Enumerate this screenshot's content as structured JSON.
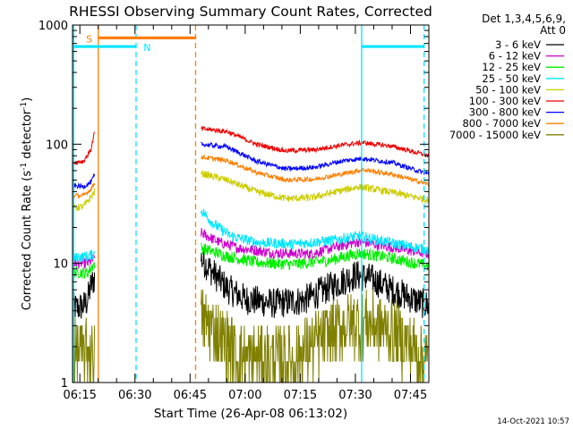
{
  "chart_data": {
    "type": "line",
    "title": "RHESSI Observing Summary Count Rates, Corrected",
    "xlabel": "Start Time (26-Apr-08 06:13:02)",
    "ylabel_main": "Corrected Count Rate (s",
    "ylabel_sup1": "-1",
    "ylabel_mid": " detector",
    "ylabel_sup2": "-1",
    "ylabel_end": ")",
    "yscale": "log",
    "ylim": [
      1,
      1000
    ],
    "xlim_minutes": [
      0,
      97
    ],
    "x_tick_labels": [
      "06:15",
      "06:30",
      "06:45",
      "07:00",
      "07:15",
      "07:30",
      "07:45"
    ],
    "x_tick_minutes": [
      2,
      17,
      32,
      47,
      62,
      77,
      92
    ],
    "y_tick_labels": [
      "1",
      "10",
      "100",
      "1000"
    ],
    "y_tick_values": [
      1,
      10,
      100,
      1000
    ],
    "legend_header": [
      "Det 1,3,4,5,6,9,",
      "Att 0"
    ],
    "legend_placement": "right",
    "timestamp": "14-Oct-2021 10:57",
    "segments": [
      [
        0,
        6
      ],
      [
        35,
        97
      ]
    ],
    "series": [
      {
        "name": "3 - 6 keV",
        "color": "#000000",
        "profile": [
          [
            0,
            4.5
          ],
          [
            1,
            4.2
          ],
          [
            3,
            4.4
          ],
          [
            4,
            4.8
          ],
          [
            5,
            6.5
          ],
          [
            6,
            7.5
          ],
          [
            35,
            11
          ],
          [
            38,
            8.5
          ],
          [
            42,
            6.2
          ],
          [
            47,
            5.0
          ],
          [
            55,
            4.6
          ],
          [
            63,
            4.9
          ],
          [
            70,
            6.3
          ],
          [
            77,
            8.0
          ],
          [
            81,
            7.5
          ],
          [
            87,
            6.0
          ],
          [
            94,
            4.8
          ],
          [
            97,
            4.4
          ]
        ],
        "noise": 0.13
      },
      {
        "name": "6 - 12 keV",
        "color": "#cc00cc",
        "profile": [
          [
            0,
            10
          ],
          [
            4,
            10
          ],
          [
            6,
            11
          ],
          [
            35,
            18
          ],
          [
            40,
            15
          ],
          [
            45,
            13.5
          ],
          [
            55,
            12.2
          ],
          [
            65,
            12.0
          ],
          [
            72,
            13.8
          ],
          [
            78,
            15.2
          ],
          [
            85,
            14
          ],
          [
            97,
            12
          ]
        ],
        "noise": 0.045
      },
      {
        "name": "12 - 25 keV",
        "color": "#00ee00",
        "profile": [
          [
            0,
            8.5
          ],
          [
            4,
            8.3
          ],
          [
            6,
            10
          ],
          [
            35,
            13.5
          ],
          [
            42,
            11.5
          ],
          [
            50,
            10.2
          ],
          [
            60,
            9.8
          ],
          [
            70,
            10.6
          ],
          [
            78,
            12.2
          ],
          [
            86,
            11.2
          ],
          [
            97,
            9.5
          ]
        ],
        "noise": 0.05
      },
      {
        "name": "25 - 50 keV",
        "color": "#00e5ff",
        "profile": [
          [
            0,
            11
          ],
          [
            4,
            11.5
          ],
          [
            6,
            12
          ],
          [
            35,
            28
          ],
          [
            38,
            22
          ],
          [
            43,
            17
          ],
          [
            50,
            15
          ],
          [
            60,
            14.5
          ],
          [
            70,
            15.5
          ],
          [
            78,
            17
          ],
          [
            86,
            15
          ],
          [
            97,
            13
          ]
        ],
        "noise": 0.045
      },
      {
        "name": "50 - 100 keV",
        "color": "#cccc00",
        "profile": [
          [
            0,
            29
          ],
          [
            3,
            30
          ],
          [
            5,
            36
          ],
          [
            6,
            40
          ],
          [
            35,
            57
          ],
          [
            42,
            50
          ],
          [
            50,
            40
          ],
          [
            58,
            35
          ],
          [
            65,
            35.5
          ],
          [
            72,
            40
          ],
          [
            78,
            44
          ],
          [
            86,
            40
          ],
          [
            97,
            34
          ]
        ],
        "noise": 0.03
      },
      {
        "name": "100 - 300 keV",
        "color": "#ee0000",
        "profile": [
          [
            0,
            70
          ],
          [
            3,
            72
          ],
          [
            5,
            90
          ],
          [
            6,
            125
          ],
          [
            35,
            135
          ],
          [
            42,
            128
          ],
          [
            50,
            100
          ],
          [
            58,
            88
          ],
          [
            66,
            90
          ],
          [
            73,
            98
          ],
          [
            79,
            103
          ],
          [
            87,
            96
          ],
          [
            97,
            80
          ]
        ],
        "noise": 0.02
      },
      {
        "name": "300 - 800 keV",
        "color": "#0000ff",
        "profile": [
          [
            0,
            45
          ],
          [
            3,
            44
          ],
          [
            5,
            48
          ],
          [
            6,
            55
          ],
          [
            35,
            100
          ],
          [
            42,
            95
          ],
          [
            50,
            72
          ],
          [
            58,
            62
          ],
          [
            66,
            64
          ],
          [
            73,
            72
          ],
          [
            79,
            76
          ],
          [
            87,
            70
          ],
          [
            97,
            56
          ]
        ],
        "noise": 0.02
      },
      {
        "name": "800 - 7000 keV",
        "color": "#ff7f00",
        "profile": [
          [
            0,
            37
          ],
          [
            3,
            37
          ],
          [
            5,
            42
          ],
          [
            6,
            47
          ],
          [
            35,
            78
          ],
          [
            42,
            73
          ],
          [
            50,
            58
          ],
          [
            58,
            50
          ],
          [
            66,
            51
          ],
          [
            73,
            56
          ],
          [
            79,
            61
          ],
          [
            87,
            56
          ],
          [
            97,
            46
          ]
        ],
        "noise": 0.02
      },
      {
        "name": "7000 - 15000 keV",
        "color": "#808000",
        "profile": [
          [
            0,
            1.8
          ],
          [
            6,
            1.8
          ],
          [
            35,
            3.5
          ],
          [
            40,
            2.5
          ],
          [
            46,
            1.6
          ],
          [
            60,
            1.6
          ],
          [
            67,
            2.2
          ],
          [
            74,
            3.0
          ],
          [
            80,
            3.2
          ],
          [
            88,
            2.6
          ],
          [
            97,
            1.5
          ]
        ],
        "noise": 0.28
      }
    ],
    "vertical_lines": [
      {
        "minute": 0.3,
        "color": "#00e5ff",
        "style": "solid"
      },
      {
        "minute": 7.0,
        "color": "#ff7f00",
        "style": "solid"
      },
      {
        "minute": 17.3,
        "color": "#00e5ff",
        "style": "dashed"
      },
      {
        "minute": 33.5,
        "color": "#ff7f00",
        "style": "dashed"
      },
      {
        "minute": 78.7,
        "color": "#00e5ff",
        "style": "solid"
      },
      {
        "minute": 95.7,
        "color": "#00e5ff",
        "style": "dashed"
      }
    ],
    "flag_bars": [
      {
        "label": "S",
        "color": "#ff7f00",
        "start": 7.0,
        "end": 33.5,
        "value": 780,
        "label_minute": 3.7
      },
      {
        "label": "N",
        "color": "#00e5ff",
        "start": 0.3,
        "end": 17.3,
        "value": 660,
        "label_minute": 19.3
      },
      {
        "label": "",
        "color": "#00e5ff",
        "start": 78.7,
        "end": 95.7,
        "value": 660,
        "label_minute": 0
      }
    ]
  }
}
